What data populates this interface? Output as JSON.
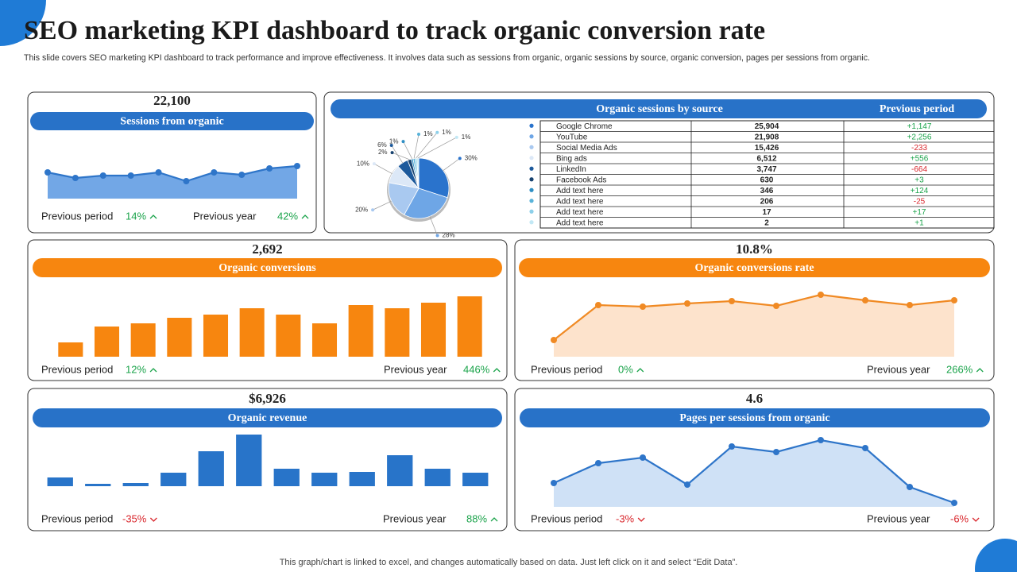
{
  "title": "SEO marketing KPI dashboard to track organic conversion rate",
  "subtitle": "This slide covers SEO marketing KPI dashboard to track performance and improve effectiveness. It involves data such as sessions from organic, organic sessions by source, organic conversion, pages per sessions from organic.",
  "footer": "This graph/chart is linked to excel, and changes automatically based on data. Just left click on it and select “Edit Data”.",
  "cards": [
    {
      "kpi": "22,100",
      "label": "Sessions from organic",
      "comparisons": [
        {
          "label": "Previous period",
          "value": "14%",
          "trend": "up"
        },
        {
          "label": "Previous year",
          "value": "42%",
          "trend": "up"
        }
      ]
    },
    {
      "kpi": "2,692",
      "label": "Organic conversions",
      "comparisons": [
        {
          "label": "Previous period",
          "value": "12%",
          "trend": "up"
        },
        {
          "label": "Previous year",
          "value": "446%",
          "trend": "up"
        }
      ]
    },
    {
      "kpi": "10.8%",
      "label": "Organic conversions rate",
      "comparisons": [
        {
          "label": "Previous period",
          "value": "0%",
          "trend": "up"
        },
        {
          "label": "Previous year",
          "value": "266%",
          "trend": "up"
        }
      ]
    },
    {
      "kpi": "$6,926",
      "label": "Organic revenue",
      "comparisons": [
        {
          "label": "Previous period",
          "value": "-35%",
          "trend": "down"
        },
        {
          "label": "Previous year",
          "value": "88%",
          "trend": "up"
        }
      ]
    },
    {
      "kpi": "4.6",
      "label": "Pages per sessions from organic",
      "comparisons": [
        {
          "label": "Previous period",
          "value": "-3%",
          "trend": "down"
        },
        {
          "label": "Previous year",
          "value": "-6%",
          "trend": "down"
        }
      ]
    }
  ],
  "sources": {
    "title": "Organic  sessions by source",
    "column": "Previous period",
    "rows": [
      [
        "Google Chrome",
        "25,904",
        "+1,147"
      ],
      [
        "YouTube",
        "21,908",
        "+2,256"
      ],
      [
        "Social Media Ads",
        "15,426",
        "-233"
      ],
      [
        "Bing ads",
        "6,512",
        "+556"
      ],
      [
        "LinkedIn",
        "3,747",
        "-664"
      ],
      [
        "Facebook Ads",
        "630",
        "+3"
      ],
      [
        "Add text here",
        "346",
        "+124"
      ],
      [
        "Add text here",
        "206",
        "-25"
      ],
      [
        "Add text here",
        "17",
        "+17"
      ],
      [
        "Add text here",
        "2",
        "+1"
      ]
    ]
  },
  "chart_data": [
    {
      "type": "line",
      "color": "#2e75c9",
      "fill": "#72a7e6",
      "values": [
        33,
        26,
        29,
        29,
        33,
        22,
        33,
        30,
        38,
        41
      ]
    },
    {
      "type": "pie",
      "values": [
        30,
        28,
        20,
        10,
        6,
        2,
        1,
        1,
        1,
        1
      ],
      "value_labels": [
        "30%",
        "28%",
        "20%",
        "10%",
        "6%",
        "2%",
        "1%",
        "1%",
        "1%",
        "1%"
      ],
      "colors": [
        "#2a73cc",
        "#6ea6e6",
        "#a9c9f0",
        "#dce8f7",
        "#1d5a9c",
        "#17426f",
        "#2f8fc4",
        "#59b3d9",
        "#8dd0ea",
        "#c2e8f5"
      ]
    },
    {
      "type": "bar",
      "color": "#f7860f",
      "values": [
        18,
        38,
        42,
        49,
        53,
        61,
        53,
        42,
        65,
        61,
        68,
        76
      ]
    },
    {
      "type": "line",
      "color": "#f08a24",
      "fill": "#fde3cc",
      "values": [
        21,
        65,
        63,
        67,
        70,
        64,
        78,
        71,
        65,
        71
      ]
    },
    {
      "type": "bar",
      "color": "#2874c9",
      "values": [
        11,
        3,
        4,
        17,
        44,
        65,
        22,
        17,
        18,
        39,
        22,
        17
      ]
    },
    {
      "type": "line",
      "color": "#2e75c9",
      "fill": "#cfe1f6",
      "values": [
        30,
        55,
        62,
        28,
        76,
        69,
        84,
        74,
        25,
        5
      ]
    }
  ]
}
